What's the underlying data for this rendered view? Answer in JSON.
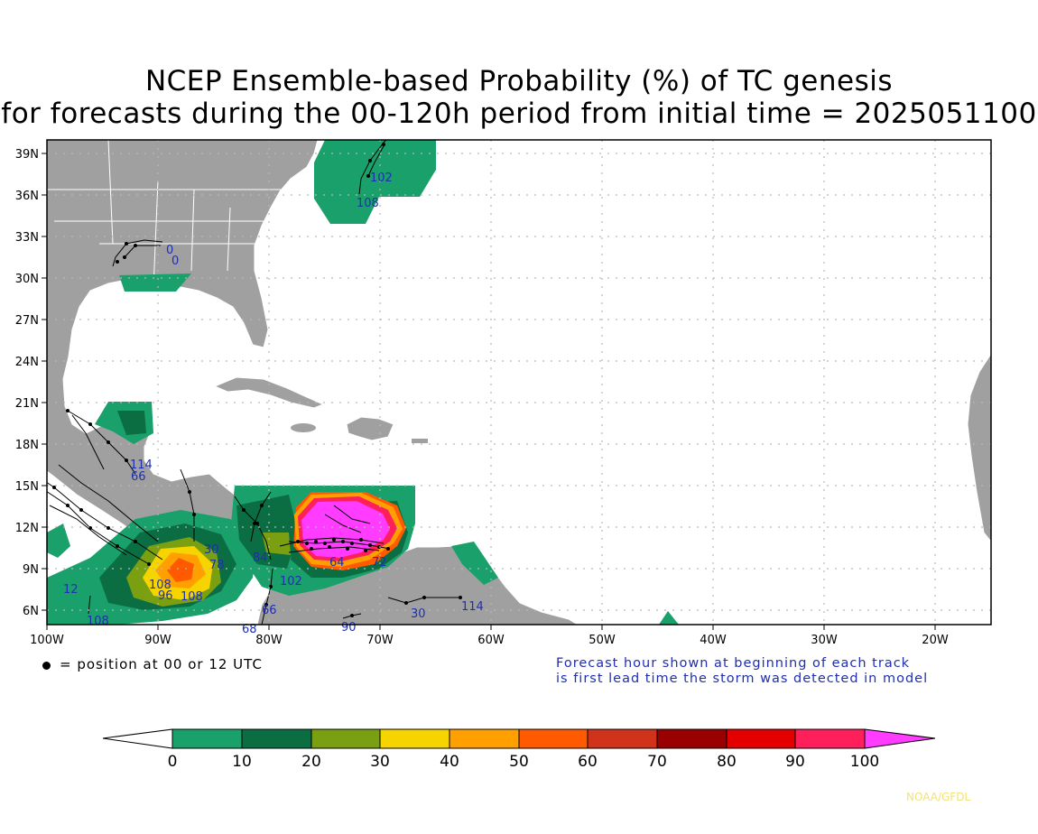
{
  "title": {
    "line1": "NCEP Ensemble-based Probability (%) of TC genesis",
    "line2": "for forecasts during the 00-120h period from initial time = 2025051100"
  },
  "map": {
    "lon_range": [
      -100,
      -15
    ],
    "lat_range": [
      5,
      40
    ],
    "lat_ticks": [
      "39N",
      "36N",
      "33N",
      "30N",
      "27N",
      "24N",
      "21N",
      "18N",
      "15N",
      "12N",
      "9N",
      "6N"
    ],
    "lon_ticks": [
      "100W",
      "90W",
      "80W",
      "70W",
      "60W",
      "50W",
      "40W",
      "30W",
      "20W"
    ],
    "grid": "dotted",
    "land_color": "#a0a0a0",
    "ocean_color": "#ffffff"
  },
  "track_labels": [
    "102",
    "108",
    "0",
    "0",
    "114",
    "66",
    "12",
    "108",
    "30",
    "84",
    "108",
    "102",
    "66",
    "68",
    "64",
    "30",
    "90",
    "114",
    "72",
    "78",
    "96",
    "108"
  ],
  "legend": {
    "dot_text": "= position at 00 or 12 UTC",
    "note_line1": "Forecast hour shown at beginning of each track",
    "note_line2": "is first lead time the storm was detected in model"
  },
  "colorbar": {
    "ticks": [
      "0",
      "10",
      "20",
      "30",
      "40",
      "50",
      "60",
      "70",
      "80",
      "90",
      "100"
    ],
    "colors": [
      "#ffffff",
      "#19a06b",
      "#0b6e43",
      "#7aa012",
      "#f5d400",
      "#ffa000",
      "#ff5a00",
      "#d0321a",
      "#9a0000",
      "#e50000",
      "#ff1f5a",
      "#ff3cff"
    ]
  },
  "credit": "NOAA/GFDL"
}
